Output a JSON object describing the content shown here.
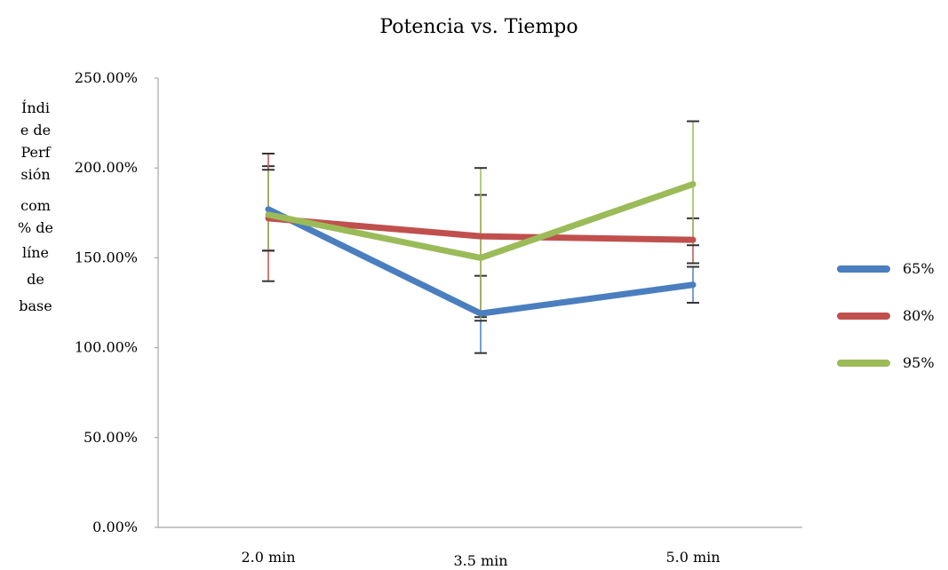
{
  "chart_data": {
    "type": "line",
    "title": "Potencia vs. Tiempo",
    "ylabel_lines": [
      "Índi",
      "e de",
      "Perf",
      "sión",
      "com",
      "% de",
      "líne",
      "de",
      "base"
    ],
    "categories": [
      "2.0 min",
      "3.5 min",
      "5.0 min"
    ],
    "ylim": [
      0,
      250
    ],
    "y_tick_labels": [
      "0.00%",
      "50.00%",
      "100.00%",
      "150.00%",
      "200.00%",
      "250.00%"
    ],
    "y_tick_values": [
      0,
      50,
      100,
      150,
      200,
      250
    ],
    "grid": false,
    "legend_position": "right",
    "series": [
      {
        "name": "65%",
        "color": "#4a7ebf",
        "values": [
          177,
          119,
          135
        ],
        "error_low": [
          154,
          97,
          125
        ],
        "error_high": [
          201,
          140,
          145
        ]
      },
      {
        "name": "80%",
        "color": "#c0504d",
        "values": [
          172,
          162,
          160
        ],
        "error_low": [
          137,
          117,
          147
        ],
        "error_high": [
          208,
          185,
          172
        ]
      },
      {
        "name": "95%",
        "color": "#9bbb59",
        "values": [
          174,
          150,
          191
        ],
        "error_low": [
          154,
          115,
          157
        ],
        "error_high": [
          199,
          200,
          226
        ]
      }
    ]
  }
}
